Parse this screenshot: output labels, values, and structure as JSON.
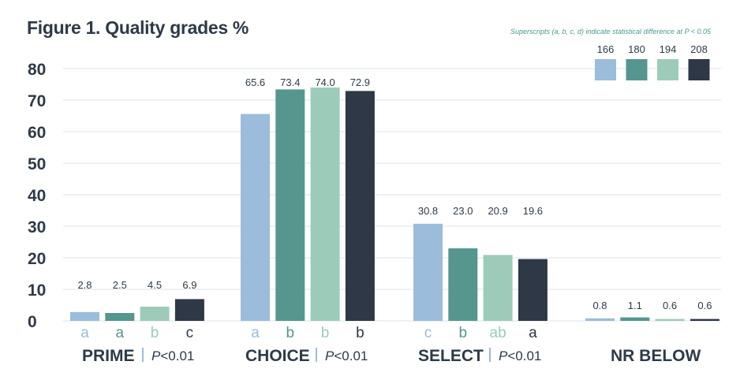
{
  "title": "Figure 1. Quality grades %",
  "note": "Superscripts (a, b, c, d) indicate statistical difference at P < 0.05",
  "colors": {
    "series": [
      "#9bbcda",
      "#55968f",
      "#9ccbba",
      "#2e3847"
    ],
    "text": "#2d3a48",
    "grid": "#dde1e5",
    "note": "#4a9a92"
  },
  "chart_data": {
    "type": "bar",
    "categories": [
      "PRIME",
      "CHOICE",
      "SELECT",
      "NR BELOW"
    ],
    "p_values": [
      {
        "prefix": "P",
        "text": "<0.01"
      },
      {
        "prefix": "P",
        "text": "<0.01"
      },
      {
        "prefix": "P",
        "text": "<0.01"
      },
      null
    ],
    "series": [
      {
        "name": "166",
        "values": [
          2.8,
          65.6,
          30.8,
          0.8
        ],
        "superscripts": [
          "a",
          "a",
          "c",
          ""
        ]
      },
      {
        "name": "180",
        "values": [
          2.5,
          73.4,
          23.0,
          1.1
        ],
        "superscripts": [
          "a",
          "b",
          "b",
          ""
        ]
      },
      {
        "name": "194",
        "values": [
          4.5,
          74.0,
          20.9,
          0.6
        ],
        "superscripts": [
          "b",
          "b",
          "ab",
          ""
        ]
      },
      {
        "name": "208",
        "values": [
          6.9,
          72.9,
          19.6,
          0.6
        ],
        "superscripts": [
          "c",
          "b",
          "a",
          ""
        ]
      }
    ],
    "value_labels": [
      [
        "2.8",
        "65.6",
        "30.8",
        "0.8"
      ],
      [
        "2.5",
        "73.4",
        "23.0",
        "1.1"
      ],
      [
        "4.5",
        "74.0",
        "20.9",
        "0.6"
      ],
      [
        "6.9",
        "72.9",
        "19.6",
        "0.6"
      ]
    ],
    "y_ticks": [
      "0",
      "10",
      "20",
      "30",
      "40",
      "50",
      "60",
      "70",
      "80"
    ],
    "ylim": [
      0,
      80
    ],
    "grid": true,
    "legend_position": "top-right"
  }
}
